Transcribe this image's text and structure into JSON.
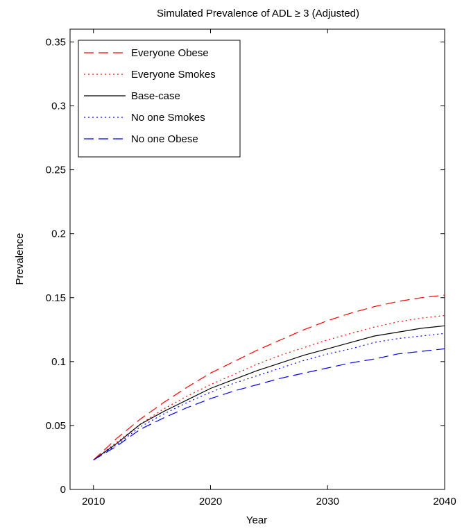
{
  "chart_data": {
    "type": "line",
    "title": "Simulated Prevalence of ADL ≥ 3 (Adjusted)",
    "xlabel": "Year",
    "ylabel": "Prevalence",
    "xlim": [
      2008,
      2040
    ],
    "ylim": [
      0,
      0.36
    ],
    "xticks": [
      2010,
      2020,
      2030,
      2040
    ],
    "yticks": [
      0,
      0.05,
      0.1,
      0.15,
      0.2,
      0.25,
      0.3,
      0.35
    ],
    "ytick_labels": [
      "0",
      "0.05",
      "0.1",
      "0.15",
      "0.2",
      "0.25",
      "0.3",
      "0.35"
    ],
    "grid": false,
    "legend_position": "top-left",
    "x": [
      2010,
      2012,
      2014,
      2016,
      2018,
      2020,
      2022,
      2024,
      2026,
      2028,
      2030,
      2032,
      2034,
      2036,
      2038,
      2040
    ],
    "series": [
      {
        "name": "Everyone Obese",
        "color": "#ff0000",
        "dash": "dashed",
        "values": [
          0.023,
          0.04,
          0.055,
          0.068,
          0.08,
          0.091,
          0.1,
          0.109,
          0.117,
          0.125,
          0.132,
          0.138,
          0.143,
          0.147,
          0.15,
          0.152
        ]
      },
      {
        "name": "Everyone Smokes",
        "color": "#ff0000",
        "dash": "dotted",
        "values": [
          0.023,
          0.037,
          0.051,
          0.063,
          0.073,
          0.082,
          0.09,
          0.098,
          0.105,
          0.111,
          0.117,
          0.122,
          0.127,
          0.131,
          0.134,
          0.136
        ]
      },
      {
        "name": "Base-case",
        "color": "#000000",
        "dash": "solid",
        "values": [
          0.023,
          0.036,
          0.051,
          0.061,
          0.07,
          0.079,
          0.086,
          0.093,
          0.099,
          0.105,
          0.11,
          0.115,
          0.12,
          0.123,
          0.126,
          0.128
        ]
      },
      {
        "name": "No one Smokes",
        "color": "#0000ff",
        "dash": "dotted",
        "values": [
          0.023,
          0.035,
          0.049,
          0.059,
          0.068,
          0.076,
          0.083,
          0.089,
          0.095,
          0.101,
          0.106,
          0.11,
          0.115,
          0.118,
          0.12,
          0.122
        ]
      },
      {
        "name": "No one Obese",
        "color": "#0000ff",
        "dash": "dashed",
        "values": [
          0.023,
          0.034,
          0.047,
          0.056,
          0.064,
          0.071,
          0.077,
          0.082,
          0.087,
          0.091,
          0.095,
          0.099,
          0.102,
          0.106,
          0.108,
          0.11
        ]
      }
    ]
  }
}
